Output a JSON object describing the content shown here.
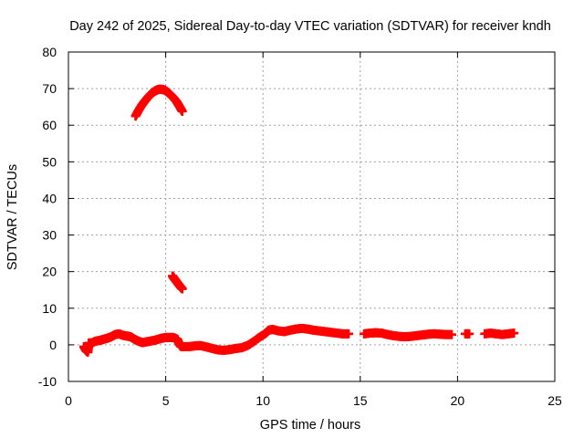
{
  "chart_data": {
    "type": "scatter",
    "title": "Day 242 of 2025, Sidereal Day-to-day VTEC variation (SDTVAR) for receiver kndh",
    "xlabel": "GPS time / hours",
    "ylabel": "SDTVAR / TECUs",
    "xlim": [
      0,
      25
    ],
    "ylim": [
      -10,
      80
    ],
    "xticks": [
      0,
      5,
      10,
      15,
      20,
      25
    ],
    "xtick_labels": [
      "0",
      "5",
      "10",
      "15",
      "20",
      "25"
    ],
    "yticks": [
      -10,
      0,
      10,
      20,
      30,
      40,
      50,
      60,
      70,
      80
    ],
    "ytick_labels": [
      "-10",
      "0",
      "10",
      "20",
      "30",
      "40",
      "50",
      "60",
      "70",
      "80"
    ],
    "grid": true,
    "marker": "plus",
    "series": [
      {
        "name": "SDTVAR main trace",
        "color": "#ff0000",
        "points": [
          [
            0.8,
            -0.5
          ],
          [
            0.9,
            -1.5
          ],
          [
            1.0,
            -2.0
          ],
          [
            1.05,
            0.5
          ],
          [
            1.2,
            0.5
          ],
          [
            1.4,
            1.0
          ],
          [
            1.6,
            1.2
          ],
          [
            1.8,
            1.5
          ],
          [
            2.0,
            1.8
          ],
          [
            2.2,
            2.2
          ],
          [
            2.4,
            2.8
          ],
          [
            2.6,
            3.0
          ],
          [
            2.8,
            2.6
          ],
          [
            3.0,
            2.4
          ],
          [
            3.2,
            2.2
          ],
          [
            3.4,
            1.5
          ],
          [
            3.6,
            1.0
          ],
          [
            3.8,
            0.6
          ],
          [
            4.0,
            0.8
          ],
          [
            4.2,
            1.0
          ],
          [
            4.4,
            1.2
          ],
          [
            4.6,
            1.5
          ],
          [
            4.8,
            1.8
          ],
          [
            5.0,
            2.0
          ],
          [
            5.2,
            2.0
          ],
          [
            5.4,
            2.0
          ],
          [
            5.6,
            1.5
          ],
          [
            5.7,
            0.2
          ],
          [
            5.8,
            -0.5
          ],
          [
            6.2,
            -0.5
          ],
          [
            6.5,
            -0.3
          ],
          [
            6.8,
            -0.2
          ],
          [
            7.1,
            -0.6
          ],
          [
            7.4,
            -1.0
          ],
          [
            7.7,
            -1.4
          ],
          [
            8.0,
            -1.5
          ],
          [
            8.3,
            -1.3
          ],
          [
            8.6,
            -1.0
          ],
          [
            8.9,
            -0.8
          ],
          [
            9.2,
            -0.2
          ],
          [
            9.5,
            0.8
          ],
          [
            9.8,
            2.0
          ],
          [
            10.1,
            3.0
          ],
          [
            10.3,
            4.0
          ],
          [
            10.5,
            4.2
          ],
          [
            10.8,
            3.8
          ],
          [
            11.1,
            3.6
          ],
          [
            11.4,
            4.0
          ],
          [
            11.7,
            4.3
          ],
          [
            12.0,
            4.5
          ],
          [
            12.3,
            4.3
          ],
          [
            12.6,
            4.0
          ],
          [
            12.9,
            3.8
          ],
          [
            13.2,
            3.6
          ],
          [
            13.5,
            3.4
          ],
          [
            13.8,
            3.2
          ],
          [
            14.1,
            3.0
          ],
          [
            14.4,
            3.0
          ],
          [
            15.2,
            3.0
          ],
          [
            15.5,
            3.2
          ],
          [
            15.8,
            3.3
          ],
          [
            16.1,
            3.2
          ],
          [
            16.4,
            2.8
          ],
          [
            16.7,
            2.5
          ],
          [
            17.0,
            2.3
          ],
          [
            17.3,
            2.2
          ],
          [
            17.6,
            2.3
          ],
          [
            17.9,
            2.5
          ],
          [
            18.2,
            2.7
          ],
          [
            18.5,
            2.9
          ],
          [
            18.8,
            3.0
          ],
          [
            19.1,
            2.9
          ],
          [
            19.4,
            2.8
          ],
          [
            19.7,
            2.8
          ],
          [
            20.4,
            3.0
          ],
          [
            20.6,
            3.0
          ],
          [
            21.4,
            3.0
          ],
          [
            21.7,
            3.2
          ],
          [
            22.0,
            3.0
          ],
          [
            22.3,
            2.8
          ],
          [
            22.6,
            3.0
          ],
          [
            22.9,
            3.2
          ]
        ]
      },
      {
        "name": "SDTVAR high arc",
        "color": "#ff0000",
        "points": [
          [
            3.45,
            62.5
          ],
          [
            3.6,
            64.0
          ],
          [
            3.75,
            65.3
          ],
          [
            3.9,
            66.4
          ],
          [
            4.05,
            67.4
          ],
          [
            4.2,
            68.3
          ],
          [
            4.35,
            69.0
          ],
          [
            4.5,
            69.5
          ],
          [
            4.65,
            69.8
          ],
          [
            4.8,
            69.8
          ],
          [
            4.95,
            69.6
          ],
          [
            5.1,
            69.0
          ],
          [
            5.25,
            68.3
          ],
          [
            5.4,
            67.5
          ],
          [
            5.55,
            66.5
          ],
          [
            5.7,
            65.2
          ],
          [
            5.85,
            63.8
          ]
        ]
      },
      {
        "name": "SDTVAR short segment",
        "color": "#ff0000",
        "points": [
          [
            5.35,
            18.8
          ],
          [
            5.45,
            18.0
          ],
          [
            5.55,
            17.3
          ],
          [
            5.65,
            16.6
          ],
          [
            5.75,
            15.9
          ],
          [
            5.85,
            15.3
          ]
        ]
      }
    ]
  }
}
